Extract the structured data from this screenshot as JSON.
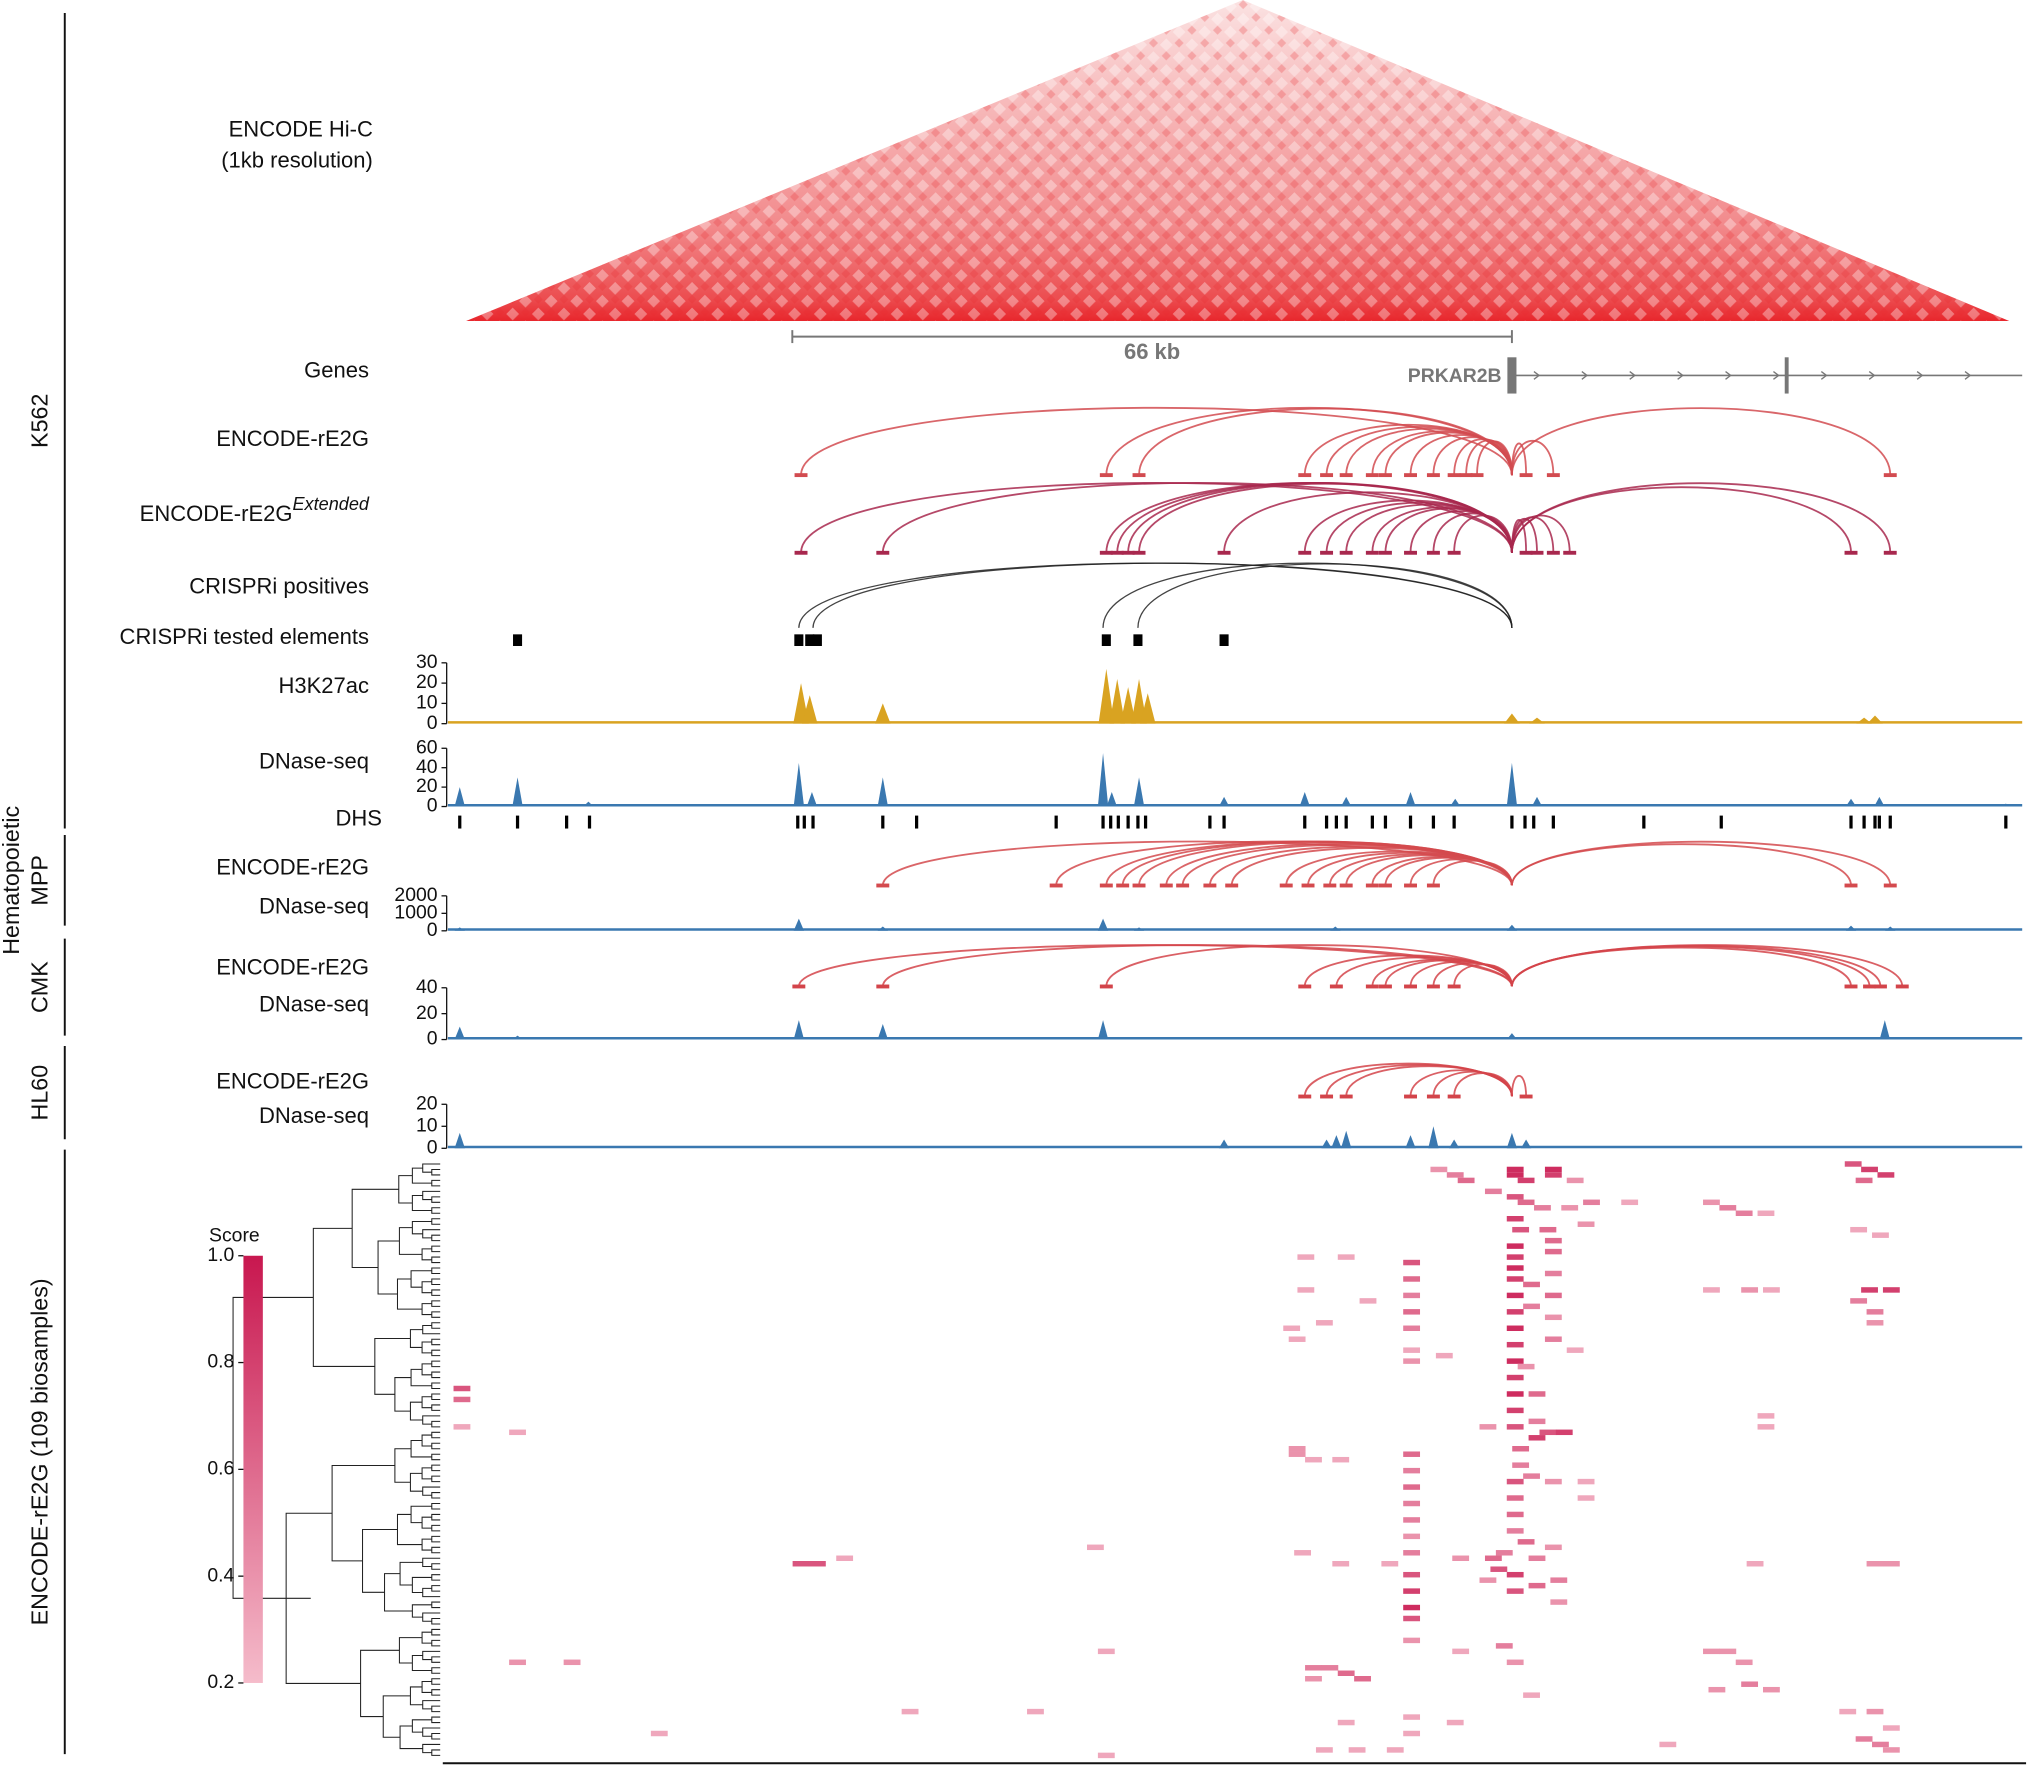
{
  "chart_data": {
    "type": "genome-tracks",
    "xlim": [
      0,
      144.5
    ],
    "groups": [
      {
        "label": [
          "K562"
        ]
      },
      {
        "label": [
          "Hematopoietic",
          "MPP"
        ]
      },
      {
        "label": [
          "CMK"
        ]
      },
      {
        "label": [
          "HL60"
        ]
      },
      {
        "label": [
          "ENCODE-rE2G (109 biosamples)"
        ]
      }
    ],
    "hic": {
      "label": [
        "ENCODE Hi-C",
        "(1kb resolution)"
      ],
      "color": "#e8262c"
    },
    "scale_bar": {
      "label": "66 kb",
      "x": [
        31.7,
        97.7
      ]
    },
    "genes": {
      "label": "Genes",
      "name": "PRKAR2B",
      "tss": 97.7,
      "end": 144.5,
      "exons": [
        97.7,
        122.9
      ],
      "color": "#777777"
    },
    "arc_tracks": [
      {
        "label": "ENCODE-rE2G",
        "color": "#d24b50",
        "target": 97.7,
        "elements": [
          32.5,
          60.5,
          63.5,
          78.7,
          80.7,
          82.5,
          84.9,
          86.1,
          88.4,
          90.5,
          92.4,
          93.5,
          94.5,
          99,
          101.5,
          132.4
        ]
      },
      {
        "label": "ENCODE-rE2G",
        "label_sup": "Extended",
        "color": "#a8284e",
        "target": 97.7,
        "elements": [
          32.5,
          40,
          60.5,
          61.5,
          62.5,
          63.5,
          71.3,
          78.7,
          80.7,
          82.5,
          84.9,
          86.1,
          88.4,
          90.5,
          92.4,
          99,
          100,
          101.5,
          103,
          128.8,
          132.4
        ]
      },
      {
        "label": "CRISPRi positives",
        "color": "#222222",
        "target": 97.7,
        "elements": [
          32.3,
          33.6,
          60.2,
          63.4
        ]
      },
      {
        "label": "ENCODE-rE2G",
        "color": "#d44a4e",
        "target": 97.7,
        "elements": [
          40,
          55.9,
          60.5,
          62,
          63.5,
          66,
          67.5,
          70,
          72,
          77,
          79,
          81,
          82.5,
          84.9,
          86.1,
          88.4,
          90.5,
          128.8,
          132.4
        ]
      },
      {
        "label": "ENCODE-rE2G",
        "color": "#d3444a",
        "target": 97.7,
        "elements": [
          32.3,
          40,
          60.5,
          78.7,
          81.6,
          84.9,
          86.1,
          88.4,
          90.5,
          92.4,
          128.8,
          130.5,
          131.5,
          133.5
        ]
      },
      {
        "label": "ENCODE-rE2G",
        "color": "#d3444a",
        "target": 97.7,
        "elements": [
          78.7,
          80.7,
          82.5,
          88.4,
          90.5,
          92.4,
          99
        ]
      }
    ],
    "tested_elements": {
      "label": "CRISPRi tested elements",
      "x": [
        6.5,
        32.3,
        33.3,
        34,
        60.5,
        63.4,
        71.3
      ]
    },
    "signal_tracks": [
      {
        "label": "H3K27ac",
        "color": "#d9a321",
        "ylim": [
          0,
          30
        ],
        "yticks": [
          0,
          10,
          20,
          30
        ],
        "x": [
          32.5,
          33.3,
          40,
          60.5,
          61.5,
          62.5,
          63.5,
          64.3,
          97.7,
          100,
          130,
          131
        ],
        "values": [
          20,
          14,
          10,
          27,
          22,
          18,
          22,
          15,
          5,
          3,
          3,
          4
        ]
      },
      {
        "label": "DNase-seq",
        "color": "#3a78b0",
        "ylim": [
          0,
          60
        ],
        "yticks": [
          0,
          20,
          40,
          60
        ],
        "x": [
          1.2,
          6.5,
          13,
          32.3,
          33.5,
          40,
          60.2,
          61,
          63.5,
          71.3,
          78.7,
          82.5,
          88.4,
          92.5,
          97.7,
          100,
          128.8,
          131.4,
          143
        ],
        "values": [
          20,
          30,
          5,
          45,
          15,
          30,
          55,
          15,
          30,
          10,
          15,
          10,
          15,
          8,
          45,
          10,
          8,
          10,
          3
        ]
      },
      {
        "label": "DNase-seq",
        "color": "#3a78b0",
        "ylim": [
          0,
          2000
        ],
        "yticks": [
          0,
          1000,
          2000
        ],
        "x": [
          1.2,
          32.3,
          40,
          60.2,
          63.5,
          81.5,
          97.7,
          128.8,
          132.4
        ],
        "values": [
          200,
          700,
          250,
          700,
          200,
          250,
          350,
          300,
          250
        ]
      },
      {
        "label": "DNase-seq",
        "color": "#3a78b0",
        "ylim": [
          0,
          40
        ],
        "yticks": [
          0,
          20,
          40
        ],
        "x": [
          1.2,
          6.5,
          32.3,
          40,
          60.2,
          97.7,
          131.9
        ],
        "values": [
          10,
          3,
          15,
          12,
          15,
          5,
          15
        ]
      },
      {
        "label": "DNase-seq",
        "color": "#3a78b0",
        "ylim": [
          0,
          20
        ],
        "yticks": [
          0,
          10,
          20
        ],
        "x": [
          1.2,
          71.3,
          80.7,
          81.6,
          82.5,
          88.4,
          90.5,
          92.4,
          97.7,
          99
        ],
        "values": [
          7,
          4,
          4,
          6,
          8,
          6,
          10,
          4,
          7,
          4
        ]
      }
    ],
    "dhs": {
      "label": "DHS",
      "x": [
        1.2,
        6.5,
        11,
        13.1,
        32.2,
        32.8,
        33.6,
        40,
        43.1,
        55.9,
        60.2,
        60.9,
        61.6,
        62.5,
        63.4,
        64.1,
        70,
        71.3,
        78.7,
        80.7,
        81.6,
        82.5,
        84.9,
        86.1,
        88.4,
        90.5,
        92.4,
        97.7,
        98.9,
        99.7,
        101.5,
        109.8,
        116.9,
        128.8,
        130,
        131,
        131.4,
        132.4,
        143
      ]
    },
    "heatmap": {
      "x": [
        91,
        92.5,
        93.5,
        96,
        98,
        98,
        99,
        101.5,
        101.5,
        103.5,
        98,
        99,
        100.5,
        103,
        105,
        108.5,
        116,
        117.5,
        119,
        121,
        129,
        130.5,
        132,
        130,
        98,
        98.5,
        101,
        104.5,
        101.5,
        129.5,
        131.5,
        98,
        98,
        98,
        98,
        98,
        98,
        98,
        98,
        98,
        98,
        99.5,
        99.5,
        101.5,
        101.5,
        101.5,
        101.5,
        101.5,
        88.5,
        88.5,
        88.5,
        88.5,
        88.5,
        78.8,
        82.5,
        78.8,
        84.5,
        116,
        119.5,
        121.5,
        130.5,
        132.5,
        129.5,
        131,
        131,
        77.5,
        78,
        80.5,
        88.5,
        88.5,
        91.5,
        99,
        103.5,
        98,
        98,
        98,
        100,
        100,
        100,
        101,
        102.5,
        95.5,
        1.4,
        1.4,
        1.4,
        6.5,
        98.5,
        98.5,
        98,
        98,
        78,
        78,
        79.5,
        82,
        88.5,
        88.5,
        88.5,
        88.5,
        121,
        121,
        99.5,
        101.5,
        104.5,
        104.5,
        88.5,
        88.5,
        88.5,
        98,
        98,
        97,
        99,
        100,
        101.5,
        32.5,
        34,
        36.5,
        59.5,
        78.5,
        82,
        86.5,
        93,
        96,
        96.5,
        95.5,
        98,
        98,
        100,
        102,
        102,
        88.5,
        88.5,
        88.5,
        88.5,
        131,
        132.5,
        120,
        6.5,
        11.5,
        60.5,
        79.5,
        81,
        82.5,
        84,
        79.5,
        88.5,
        93,
        97,
        98,
        116,
        117.5,
        119,
        116.5,
        119.5,
        121.5,
        99.5,
        82.5,
        88.5,
        88.5,
        92.5,
        19.5,
        42.5,
        54,
        128.5,
        131,
        132.5,
        130,
        131.5,
        132.5,
        60.5,
        80.5,
        83.5,
        87,
        112
      ],
      "rows": [
        1,
        2,
        3,
        5,
        1,
        2,
        3,
        1,
        2,
        3,
        6,
        7,
        8,
        8,
        7,
        7,
        7,
        8,
        9,
        9,
        0,
        1,
        2,
        3,
        10,
        12,
        12,
        11,
        14,
        12,
        13,
        15,
        17,
        19,
        21,
        24,
        27,
        30,
        33,
        36,
        39,
        22,
        26,
        16,
        20,
        24,
        28,
        32,
        18,
        21,
        24,
        27,
        30,
        17,
        17,
        23,
        25,
        23,
        23,
        23,
        23,
        23,
        25,
        27,
        29,
        30,
        32,
        29,
        34,
        36,
        35,
        37,
        34,
        42,
        45,
        48,
        42,
        47,
        50,
        49,
        49,
        48,
        41,
        43,
        48,
        49,
        52,
        55,
        58,
        61,
        52,
        53,
        54,
        54,
        53,
        56,
        59,
        62,
        46,
        48,
        57,
        58,
        58,
        61,
        65,
        68,
        71,
        64,
        67,
        71,
        69,
        72,
        70,
        73,
        73,
        72,
        70,
        71,
        73,
        73,
        72,
        72,
        74,
        76,
        75,
        78,
        77,
        76,
        80,
        75,
        78,
        81,
        83,
        73,
        73,
        73,
        91,
        91,
        89,
        92,
        92,
        93,
        94,
        94,
        87,
        89,
        88,
        91,
        89,
        89,
        91,
        96,
        95,
        96,
        97,
        102,
        101,
        104,
        102,
        104,
        100,
        100,
        100,
        100,
        103,
        105,
        106,
        107,
        108,
        107,
        107,
        107,
        106
      ],
      "values": [
        0.4,
        0.5,
        0.6,
        0.5,
        0.9,
        0.9,
        0.8,
        0.9,
        0.8,
        0.4,
        0.7,
        0.6,
        0.5,
        0.4,
        0.5,
        0.3,
        0.4,
        0.5,
        0.5,
        0.3,
        0.7,
        0.8,
        0.8,
        0.6,
        0.8,
        0.7,
        0.6,
        0.4,
        0.6,
        0.3,
        0.3,
        0.9,
        0.8,
        0.9,
        0.8,
        0.9,
        0.8,
        0.9,
        0.8,
        0.9,
        0.8,
        0.6,
        0.5,
        0.6,
        0.5,
        0.6,
        0.4,
        0.5,
        0.7,
        0.6,
        0.5,
        0.6,
        0.5,
        0.3,
        0.3,
        0.3,
        0.3,
        0.3,
        0.4,
        0.3,
        0.8,
        0.8,
        0.5,
        0.5,
        0.4,
        0.3,
        0.3,
        0.3,
        0.3,
        0.4,
        0.3,
        0.4,
        0.3,
        0.9,
        0.8,
        0.7,
        0.6,
        0.5,
        0.8,
        0.7,
        0.8,
        0.4,
        0.7,
        0.6,
        0.3,
        0.3,
        0.6,
        0.5,
        0.7,
        0.6,
        0.4,
        0.4,
        0.3,
        0.3,
        0.6,
        0.5,
        0.6,
        0.5,
        0.3,
        0.3,
        0.5,
        0.4,
        0.3,
        0.3,
        0.5,
        0.4,
        0.5,
        0.6,
        0.5,
        0.5,
        0.6,
        0.5,
        0.4,
        0.7,
        0.7,
        0.3,
        0.3,
        0.3,
        0.3,
        0.3,
        0.4,
        0.6,
        0.7,
        0.4,
        0.8,
        0.7,
        0.6,
        0.5,
        0.4,
        0.7,
        0.8,
        0.9,
        0.7,
        0.4,
        0.4,
        0.3,
        0.4,
        0.4,
        0.3,
        0.5,
        0.5,
        0.6,
        0.6,
        0.4,
        0.4,
        0.3,
        0.5,
        0.4,
        0.4,
        0.4,
        0.4,
        0.4,
        0.5,
        0.4,
        0.3,
        0.3,
        0.3,
        0.3,
        0.3,
        0.3,
        0.3,
        0.3,
        0.3,
        0.4,
        0.3,
        0.5,
        0.5,
        0.4,
        0.3,
        0.3,
        0.3,
        0.3,
        0.3
      ]
    },
    "colorbar": {
      "label": "Score",
      "lim": [
        0.2,
        1.0
      ],
      "ticks": [
        0.2,
        0.4,
        0.6,
        0.8,
        {
          "value": 1,
          "label": "1.0"
        }
      ],
      "color_low": "#f5bccb",
      "color_high": "#c8174f"
    }
  }
}
